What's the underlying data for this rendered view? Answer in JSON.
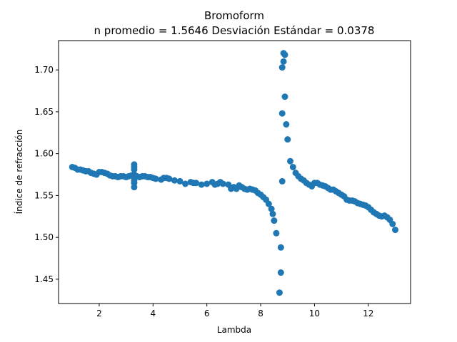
{
  "chart_data": {
    "type": "scatter",
    "title": "Bromoform",
    "subtitle": "n promedio = 1.5646  Desviación Estándar = 0.0378",
    "x_label": "Lambda",
    "y_label": "Índice de refracción",
    "color": "#1f77b4",
    "xlim": [
      0.49,
      13.57
    ],
    "ylim": [
      1.421,
      1.735
    ],
    "xticks": [
      2,
      4,
      6,
      8,
      10,
      12
    ],
    "yticks": [
      1.45,
      {
        "value": 1.5,
        "label": "1.50"
      },
      1.55,
      {
        "value": 1.6,
        "label": "1.60"
      },
      1.65,
      {
        "value": 1.7,
        "label": "1.70"
      }
    ],
    "x": [
      1.0,
      1.1,
      1.2,
      1.3,
      1.4,
      1.5,
      1.6,
      1.7,
      1.8,
      1.9,
      2.0,
      2.1,
      2.2,
      2.3,
      2.4,
      2.5,
      2.6,
      2.7,
      2.8,
      2.9,
      3.0,
      3.1,
      3.2,
      3.3,
      3.3,
      3.3,
      3.3,
      3.3,
      3.3,
      3.3,
      3.4,
      3.5,
      3.6,
      3.7,
      3.8,
      3.9,
      4.0,
      4.1,
      4.3,
      4.4,
      4.5,
      4.6,
      4.8,
      5.0,
      5.2,
      5.4,
      5.5,
      5.6,
      5.8,
      6.0,
      6.2,
      6.3,
      6.4,
      6.5,
      6.6,
      6.8,
      6.9,
      7.0,
      7.1,
      7.2,
      7.3,
      7.4,
      7.5,
      7.6,
      7.7,
      7.8,
      7.9,
      8.0,
      8.1,
      8.2,
      8.3,
      8.4,
      8.45,
      8.5,
      8.58,
      8.75,
      8.75,
      8.7,
      8.8,
      8.8,
      8.8,
      8.85,
      8.85,
      8.9,
      8.9,
      8.95,
      9.0,
      9.1,
      9.2,
      9.3,
      9.4,
      9.5,
      9.6,
      9.7,
      9.8,
      9.9,
      10.0,
      10.1,
      10.2,
      10.3,
      10.4,
      10.5,
      10.6,
      10.7,
      10.8,
      10.9,
      11.0,
      11.1,
      11.2,
      11.3,
      11.4,
      11.5,
      11.6,
      11.7,
      11.8,
      11.9,
      12.0,
      12.1,
      12.2,
      12.3,
      12.4,
      12.5,
      12.6,
      12.7,
      12.8,
      12.9,
      13.0
    ],
    "values": [
      1.584,
      1.583,
      1.581,
      1.581,
      1.58,
      1.579,
      1.579,
      1.577,
      1.576,
      1.575,
      1.578,
      1.578,
      1.577,
      1.576,
      1.574,
      1.573,
      1.573,
      1.572,
      1.573,
      1.573,
      1.572,
      1.573,
      1.574,
      1.587,
      1.584,
      1.581,
      1.575,
      1.568,
      1.565,
      1.56,
      1.573,
      1.572,
      1.573,
      1.573,
      1.572,
      1.572,
      1.571,
      1.57,
      1.569,
      1.571,
      1.571,
      1.57,
      1.568,
      1.567,
      1.564,
      1.566,
      1.565,
      1.565,
      1.563,
      1.564,
      1.566,
      1.563,
      1.564,
      1.566,
      1.564,
      1.563,
      1.558,
      1.56,
      1.558,
      1.562,
      1.56,
      1.558,
      1.557,
      1.558,
      1.557,
      1.556,
      1.553,
      1.551,
      1.548,
      1.545,
      1.54,
      1.534,
      1.528,
      1.52,
      1.505,
      1.488,
      1.458,
      1.434,
      1.567,
      1.648,
      1.703,
      1.71,
      1.72,
      1.718,
      1.668,
      1.635,
      1.617,
      1.591,
      1.584,
      1.577,
      1.573,
      1.57,
      1.568,
      1.565,
      1.563,
      1.561,
      1.565,
      1.565,
      1.563,
      1.562,
      1.561,
      1.559,
      1.557,
      1.557,
      1.555,
      1.553,
      1.551,
      1.549,
      1.545,
      1.544,
      1.544,
      1.543,
      1.541,
      1.54,
      1.539,
      1.538,
      1.536,
      1.533,
      1.53,
      1.528,
      1.526,
      1.525,
      1.526,
      1.524,
      1.521,
      1.516,
      1.509
    ]
  }
}
